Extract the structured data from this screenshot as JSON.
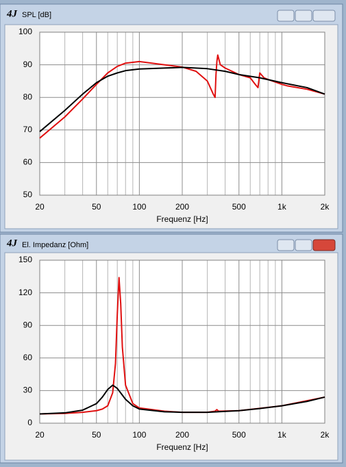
{
  "chart_data": [
    {
      "type": "line",
      "title": "SPL [dB]",
      "xlabel": "Frequenz [Hz]",
      "xscale": "log",
      "xlim": [
        20,
        2000
      ],
      "xticks": [
        20,
        50,
        100,
        200,
        500,
        {
          "value": 1000,
          "label": "1k"
        },
        {
          "value": 2000,
          "label": "2k"
        }
      ],
      "xgrid": [
        30,
        40,
        60,
        70,
        80,
        90,
        300,
        400,
        600,
        700,
        800,
        900
      ],
      "ylim": [
        50,
        100
      ],
      "yticks": [
        50,
        60,
        70,
        80,
        90,
        100
      ],
      "grid": true,
      "series": [
        {
          "color": "#e01010",
          "x": [
            20,
            30,
            40,
            50,
            60,
            70,
            80,
            100,
            150,
            200,
            250,
            300,
            330,
            340,
            345,
            350,
            355,
            370,
            400,
            500,
            600,
            650,
            680,
            700,
            750,
            800,
            1000,
            1100,
            1500,
            2000
          ],
          "values": [
            67.5,
            74,
            79.5,
            84,
            87.5,
            89.5,
            90.5,
            91,
            90,
            89.3,
            88,
            85,
            81,
            80,
            87,
            91,
            93,
            90,
            89,
            87,
            86,
            84,
            83,
            87.5,
            86,
            85.5,
            84,
            83.5,
            82.5,
            81
          ]
        },
        {
          "color": "#000000",
          "x": [
            20,
            30,
            40,
            50,
            60,
            70,
            80,
            100,
            150,
            200,
            300,
            400,
            500,
            700,
            1000,
            1500,
            2000
          ],
          "values": [
            69.5,
            76,
            81,
            84.5,
            86.5,
            87.5,
            88.2,
            88.7,
            89,
            89.2,
            88.8,
            88,
            87,
            86,
            84.5,
            83,
            81
          ]
        }
      ]
    },
    {
      "type": "line",
      "title": "El. Impedanz [Ohm]",
      "xlabel": "Frequenz [Hz]",
      "xscale": "log",
      "xlim": [
        20,
        2000
      ],
      "xticks": [
        20,
        50,
        100,
        200,
        500,
        {
          "value": 1000,
          "label": "1k"
        },
        {
          "value": 2000,
          "label": "2k"
        }
      ],
      "xgrid": [
        30,
        40,
        60,
        70,
        80,
        90,
        300,
        400,
        600,
        700,
        800,
        900
      ],
      "ylim": [
        0,
        150
      ],
      "yticks": [
        0,
        30,
        60,
        90,
        120,
        150
      ],
      "grid": true,
      "series": [
        {
          "color": "#e01010",
          "x": [
            20,
            30,
            40,
            50,
            55,
            60,
            65,
            68,
            70,
            72,
            74,
            76,
            80,
            90,
            100,
            150,
            200,
            300,
            340,
            350,
            360,
            500,
            1000,
            2000
          ],
          "values": [
            8.5,
            9,
            10,
            11.5,
            13,
            16,
            28,
            55,
            100,
            134,
            110,
            70,
            35,
            18,
            14,
            11,
            10,
            10,
            11,
            12.5,
            11,
            11.5,
            16,
            24
          ]
        },
        {
          "color": "#000000",
          "x": [
            20,
            30,
            40,
            50,
            55,
            60,
            65,
            70,
            80,
            90,
            100,
            150,
            200,
            300,
            500,
            700,
            1000,
            1500,
            2000
          ],
          "values": [
            8.5,
            9.5,
            12,
            18,
            24,
            31,
            35,
            32,
            22,
            16,
            13,
            10.5,
            10,
            10,
            11.5,
            13.5,
            16,
            20,
            24
          ]
        }
      ]
    }
  ]
}
